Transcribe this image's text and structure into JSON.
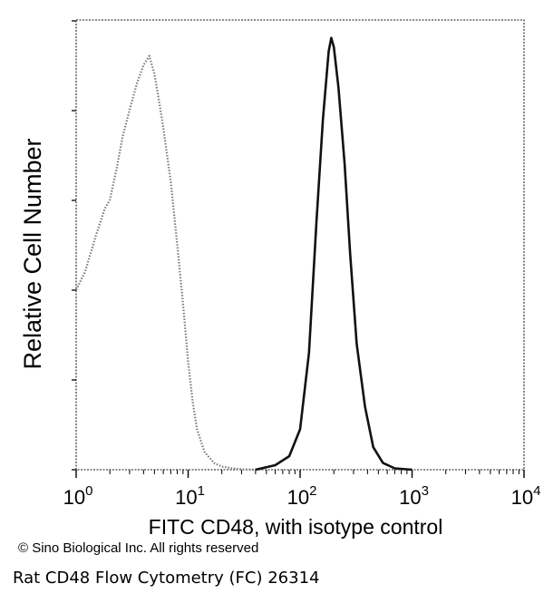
{
  "chart_data": {
    "type": "line",
    "title": "",
    "xlabel": "FITC CD48, with isotype control",
    "ylabel": "Relative Cell Number",
    "x_scale": "log",
    "xlim": [
      1,
      10000
    ],
    "ylim": [
      0,
      100
    ],
    "grid": false,
    "legend": "none",
    "x_ticks": [
      {
        "base": "10",
        "exp": "0"
      },
      {
        "base": "10",
        "exp": "1"
      },
      {
        "base": "10",
        "exp": "2"
      },
      {
        "base": "10",
        "exp": "3"
      },
      {
        "base": "10",
        "exp": "4"
      }
    ],
    "series": [
      {
        "style": "dotted",
        "color": "#7a7a7a",
        "x": [
          1.0,
          1.2,
          1.5,
          1.8,
          2.0,
          2.3,
          2.6,
          3.0,
          3.5,
          4.0,
          4.5,
          5.0,
          5.5,
          6.0,
          7.0,
          8.0,
          9.0,
          10.0,
          11.0,
          12.0,
          14.0,
          17.0,
          20.0,
          25.0,
          30.0,
          40.0
        ],
        "y": [
          40,
          44,
          52,
          58,
          60,
          67,
          74,
          80,
          86,
          90,
          92,
          88,
          82,
          76,
          64,
          50,
          37,
          24,
          15,
          9,
          4,
          1.5,
          0.7,
          0.3,
          0.1,
          0
        ]
      },
      {
        "style": "solid",
        "color": "#111111",
        "x": [
          40,
          60,
          80,
          100,
          120,
          140,
          160,
          180,
          190,
          200,
          220,
          250,
          280,
          320,
          380,
          450,
          550,
          700,
          1000
        ],
        "y": [
          0,
          1,
          3,
          9,
          26,
          55,
          78,
          93,
          96,
          94,
          85,
          68,
          48,
          28,
          14,
          5,
          1.5,
          0.3,
          0
        ]
      }
    ]
  },
  "footer": {
    "copyright": "© Sino Biological Inc. All rights reserved",
    "caption": "Rat CD48 Flow Cytometry (FC) 26314"
  }
}
